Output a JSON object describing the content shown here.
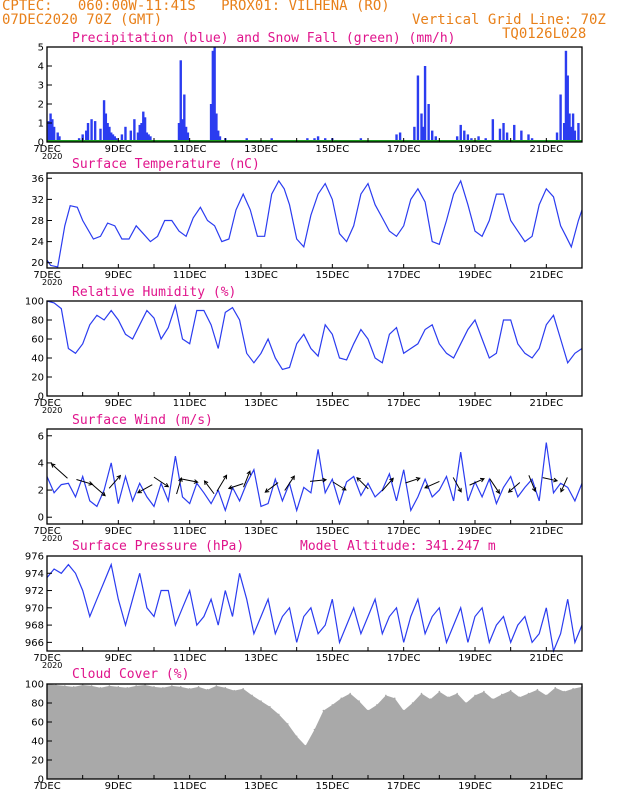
{
  "header": {
    "line1": "CPTEC:   060:00W-11:41S   PROX01: VILHENA (RO)",
    "line2_left": "07DEC2020 70Z (GMT)",
    "line2_right": "Vertical Grid Line: 70Z",
    "line3_right": "TQ0126L028"
  },
  "colors": {
    "header": "#e8801a",
    "panel_title": "#e0148c",
    "precip": "#2b3cf0",
    "snow": "#1e9c1e",
    "line": "#2b3cf0",
    "cloud": "#a9a9a9"
  },
  "x_axis": {
    "days": [
      "7DEC",
      "9DEC",
      "11DEC",
      "13DEC",
      "15DEC",
      "17DEC",
      "19DEC",
      "21DEC"
    ],
    "year_label": "2020"
  },
  "chart_data": [
    {
      "type": "bar",
      "name_key": "precip",
      "title": "Precipitation (blue) and Snow Fall (green) (mm/h)",
      "ylim": [
        0,
        5
      ],
      "yticks": [
        "0",
        "1",
        "2",
        "3",
        "4",
        "5"
      ],
      "x": [
        7.05,
        7.1,
        7.15,
        7.2,
        7.3,
        7.35,
        7.9,
        8.0,
        8.1,
        8.15,
        8.25,
        8.35,
        8.5,
        8.6,
        8.65,
        8.7,
        8.75,
        8.8,
        8.85,
        8.9,
        8.95,
        9.1,
        9.2,
        9.35,
        9.45,
        9.55,
        9.6,
        9.65,
        9.7,
        9.75,
        9.8,
        9.85,
        9.9,
        10.7,
        10.75,
        10.8,
        10.85,
        10.9,
        10.95,
        11.6,
        11.65,
        11.7,
        11.75,
        11.8,
        11.85,
        12.0,
        12.6,
        13.2,
        13.3,
        13.5,
        13.7,
        14.2,
        14.3,
        14.5,
        14.6,
        14.8,
        14.9,
        15.0,
        15.1,
        15.8,
        16.2,
        16.8,
        16.9,
        17.3,
        17.4,
        17.5,
        17.55,
        17.6,
        17.7,
        17.8,
        17.9,
        18.5,
        18.6,
        18.7,
        18.8,
        18.9,
        19.1,
        19.3,
        19.5,
        19.7,
        19.8,
        19.9,
        20.1,
        20.3,
        20.5,
        20.6,
        21.3,
        21.4,
        21.5,
        21.55,
        21.6,
        21.65,
        21.7,
        21.75,
        21.8,
        21.9
      ],
      "values": [
        1.1,
        1.5,
        1.2,
        0.8,
        0.5,
        0.3,
        0.2,
        0.4,
        0.6,
        1.0,
        1.2,
        1.1,
        0.7,
        2.2,
        1.5,
        1.0,
        0.8,
        0.5,
        0.4,
        0.3,
        0.2,
        0.4,
        0.8,
        0.6,
        1.2,
        0.5,
        0.9,
        1.0,
        1.6,
        1.3,
        0.5,
        0.4,
        0.3,
        1.0,
        4.3,
        1.2,
        2.5,
        0.8,
        0.5,
        2.0,
        4.8,
        5.0,
        1.5,
        0.6,
        0.3,
        0.2,
        0.2,
        0.1,
        0.2,
        0.1,
        0.1,
        0.1,
        0.2,
        0.2,
        0.3,
        0.2,
        0.1,
        0.2,
        0.1,
        0.2,
        0.1,
        0.4,
        0.5,
        0.8,
        3.5,
        1.5,
        0.8,
        4.0,
        2.0,
        0.6,
        0.3,
        0.3,
        0.9,
        0.6,
        0.4,
        0.2,
        0.3,
        0.2,
        1.2,
        0.7,
        1.0,
        0.5,
        0.9,
        0.6,
        0.4,
        0.2,
        0.5,
        2.5,
        1.0,
        4.8,
        3.5,
        1.5,
        0.8,
        1.5,
        0.6,
        1.0
      ],
      "snow": [
        0,
        0,
        0,
        0,
        0,
        0,
        0,
        0,
        0,
        0,
        0,
        0,
        0,
        0,
        0,
        0,
        0,
        0,
        0,
        0,
        0,
        0,
        0,
        0,
        0,
        0,
        0,
        0,
        0,
        0,
        0,
        0,
        0,
        0,
        0,
        0,
        0,
        0,
        0,
        0,
        0,
        0,
        0,
        0,
        0,
        0,
        0,
        0,
        0,
        0,
        0,
        0,
        0,
        0,
        0,
        0,
        0,
        0,
        0,
        0,
        0,
        0,
        0,
        0,
        0,
        0,
        0,
        0,
        0,
        0,
        0,
        0,
        0,
        0,
        0,
        0,
        0,
        0,
        0,
        0,
        0,
        0,
        0,
        0,
        0,
        0,
        0,
        0,
        0,
        0,
        0,
        0,
        0,
        0,
        0,
        0
      ]
    },
    {
      "type": "line",
      "name_key": "temp",
      "title": "Surface Temperature (nC)",
      "ylim": [
        19,
        37
      ],
      "yticks": [
        "20",
        "24",
        "28",
        "32",
        "36"
      ],
      "x": [
        7.0,
        7.1,
        7.3,
        7.5,
        7.65,
        7.85,
        8.0,
        8.3,
        8.5,
        8.7,
        8.9,
        9.1,
        9.3,
        9.5,
        9.7,
        9.9,
        10.1,
        10.3,
        10.5,
        10.7,
        10.9,
        11.1,
        11.3,
        11.5,
        11.7,
        11.9,
        12.1,
        12.3,
        12.5,
        12.7,
        12.9,
        13.1,
        13.3,
        13.5,
        13.65,
        13.8,
        14.0,
        14.2,
        14.4,
        14.6,
        14.8,
        15.0,
        15.2,
        15.4,
        15.6,
        15.8,
        16.0,
        16.2,
        16.4,
        16.6,
        16.8,
        17.0,
        17.2,
        17.4,
        17.6,
        17.8,
        18.0,
        18.2,
        18.4,
        18.6,
        18.8,
        19.0,
        19.2,
        19.4,
        19.6,
        19.8,
        20.0,
        20.2,
        20.4,
        20.6,
        20.8,
        21.0,
        21.2,
        21.4,
        21.55,
        21.7,
        21.9,
        22.0
      ],
      "values": [
        20.5,
        19.5,
        19.2,
        27,
        30.8,
        30.5,
        28,
        24.5,
        25,
        27.5,
        27,
        24.5,
        24.5,
        27,
        25.5,
        24,
        25,
        28,
        28,
        26,
        25,
        28.5,
        30.5,
        28,
        27,
        24,
        24.5,
        30,
        33,
        30,
        25,
        25,
        33,
        35.5,
        34,
        31,
        24.5,
        23,
        29,
        33,
        35,
        32,
        25.5,
        24,
        27,
        33,
        35,
        31,
        28.5,
        26,
        25,
        27,
        32,
        34,
        31.5,
        24,
        23.5,
        28,
        33,
        35.5,
        31,
        26,
        25,
        28,
        33,
        33,
        28,
        26,
        24,
        25,
        31,
        34,
        32.5,
        27,
        25,
        23,
        28,
        30
      ]
    },
    {
      "type": "line",
      "name_key": "rh",
      "title": "Relative Humidity (%)",
      "ylim": [
        0,
        100
      ],
      "yticks": [
        "0",
        "20",
        "40",
        "60",
        "80",
        "100"
      ],
      "x": [
        7.0,
        7.2,
        7.4,
        7.6,
        7.8,
        8.0,
        8.2,
        8.4,
        8.6,
        8.8,
        9.0,
        9.2,
        9.4,
        9.6,
        9.8,
        10.0,
        10.2,
        10.4,
        10.6,
        10.8,
        11.0,
        11.2,
        11.4,
        11.6,
        11.8,
        12.0,
        12.2,
        12.4,
        12.6,
        12.8,
        13.0,
        13.2,
        13.4,
        13.6,
        13.8,
        14.0,
        14.2,
        14.4,
        14.6,
        14.8,
        15.0,
        15.2,
        15.4,
        15.6,
        15.8,
        16.0,
        16.2,
        16.4,
        16.6,
        16.8,
        17.0,
        17.2,
        17.4,
        17.6,
        17.8,
        18.0,
        18.2,
        18.4,
        18.6,
        18.8,
        19.0,
        19.2,
        19.4,
        19.6,
        19.8,
        20.0,
        20.2,
        20.4,
        20.6,
        20.8,
        21.0,
        21.2,
        21.4,
        21.6,
        21.8,
        22.0
      ],
      "values": [
        100,
        98,
        92,
        50,
        45,
        55,
        75,
        85,
        80,
        90,
        80,
        65,
        60,
        75,
        90,
        82,
        60,
        72,
        95,
        60,
        55,
        90,
        90,
        75,
        50,
        88,
        93,
        80,
        45,
        35,
        45,
        60,
        40,
        28,
        30,
        55,
        65,
        50,
        42,
        75,
        65,
        40,
        38,
        55,
        70,
        60,
        40,
        35,
        65,
        72,
        45,
        50,
        55,
        70,
        75,
        55,
        45,
        40,
        55,
        70,
        80,
        60,
        40,
        45,
        80,
        80,
        55,
        45,
        40,
        50,
        75,
        85,
        60,
        35,
        45,
        50
      ]
    },
    {
      "type": "line",
      "name_key": "wind",
      "title": "Surface Wind (m/s)",
      "ylim": [
        -0.5,
        6.5
      ],
      "yticks": [
        "0",
        "2",
        "4",
        "6"
      ],
      "x": [
        7.0,
        7.2,
        7.4,
        7.6,
        7.8,
        8.0,
        8.2,
        8.4,
        8.6,
        8.8,
        9.0,
        9.2,
        9.4,
        9.6,
        9.8,
        10.0,
        10.2,
        10.4,
        10.6,
        10.8,
        11.0,
        11.2,
        11.4,
        11.6,
        11.8,
        12.0,
        12.2,
        12.4,
        12.6,
        12.8,
        13.0,
        13.2,
        13.4,
        13.6,
        13.8,
        14.0,
        14.2,
        14.4,
        14.6,
        14.8,
        15.0,
        15.2,
        15.4,
        15.6,
        15.8,
        16.0,
        16.2,
        16.4,
        16.6,
        16.8,
        17.0,
        17.2,
        17.4,
        17.6,
        17.8,
        18.0,
        18.2,
        18.4,
        18.6,
        18.8,
        19.0,
        19.2,
        19.4,
        19.6,
        19.8,
        20.0,
        20.2,
        20.4,
        20.6,
        20.8,
        21.0,
        21.2,
        21.4,
        21.6,
        21.8,
        22.0
      ],
      "values": [
        3.0,
        1.8,
        2.4,
        2.5,
        1.5,
        3.0,
        1.2,
        0.8,
        2.0,
        4.0,
        1.0,
        3.0,
        1.2,
        2.5,
        1.5,
        0.8,
        2.5,
        1.2,
        4.5,
        1.5,
        1.0,
        2.5,
        1.8,
        1.0,
        2.0,
        0.5,
        2.2,
        1.2,
        2.5,
        3.5,
        0.8,
        1.0,
        2.8,
        1.2,
        2.5,
        0.5,
        2.2,
        1.8,
        5.0,
        1.8,
        2.8,
        1.0,
        2.6,
        3.0,
        1.6,
        2.5,
        1.5,
        2.0,
        3.2,
        1.2,
        3.5,
        0.5,
        1.5,
        2.8,
        1.5,
        2.0,
        3.0,
        1.2,
        4.8,
        1.2,
        2.6,
        1.5,
        2.8,
        1.0,
        2.2,
        3.0,
        1.5,
        2.2,
        2.8,
        1.2,
        5.5,
        1.8,
        2.5,
        2.2,
        1.2,
        2.5
      ],
      "arrows": [
        {
          "x": 7.35,
          "y": 3.4,
          "u": -1,
          "v": 0.9
        },
        {
          "x": 8.05,
          "y": 2.6,
          "u": 1,
          "v": -0.3
        },
        {
          "x": 8.45,
          "y": 2.0,
          "u": 0.8,
          "v": -0.7
        },
        {
          "x": 8.9,
          "y": 2.6,
          "u": 0.7,
          "v": 0.8
        },
        {
          "x": 9.75,
          "y": 2.1,
          "u": -0.9,
          "v": -0.5
        },
        {
          "x": 10.2,
          "y": 2.6,
          "u": 0.9,
          "v": -0.6
        },
        {
          "x": 10.7,
          "y": 2.3,
          "u": 0.3,
          "v": 1.0
        },
        {
          "x": 11.0,
          "y": 2.7,
          "u": 1,
          "v": -0.2
        },
        {
          "x": 11.55,
          "y": 2.2,
          "u": -0.6,
          "v": 0.8
        },
        {
          "x": 11.9,
          "y": 2.5,
          "u": 0.6,
          "v": 1.0
        },
        {
          "x": 12.3,
          "y": 2.3,
          "u": -0.9,
          "v": -0.3
        },
        {
          "x": 12.6,
          "y": 2.8,
          "u": 0.4,
          "v": 1.0
        },
        {
          "x": 13.3,
          "y": 2.2,
          "u": -0.8,
          "v": -0.6
        },
        {
          "x": 13.8,
          "y": 2.5,
          "u": 0.6,
          "v": 0.9
        },
        {
          "x": 14.6,
          "y": 2.7,
          "u": 1,
          "v": 0.1
        },
        {
          "x": 15.2,
          "y": 2.3,
          "u": 0.8,
          "v": -0.5
        },
        {
          "x": 15.85,
          "y": 2.5,
          "u": -0.7,
          "v": 0.7
        },
        {
          "x": 16.55,
          "y": 2.4,
          "u": 0.7,
          "v": 0.8
        },
        {
          "x": 17.25,
          "y": 2.7,
          "u": 0.9,
          "v": 0.3
        },
        {
          "x": 17.8,
          "y": 2.4,
          "u": -0.9,
          "v": -0.4
        },
        {
          "x": 18.5,
          "y": 2.4,
          "u": 0.5,
          "v": -0.9
        },
        {
          "x": 19.05,
          "y": 2.6,
          "u": 0.9,
          "v": 0.4
        },
        {
          "x": 19.55,
          "y": 2.3,
          "u": 0.6,
          "v": -0.9
        },
        {
          "x": 20.1,
          "y": 2.2,
          "u": -0.7,
          "v": -0.6
        },
        {
          "x": 20.6,
          "y": 2.5,
          "u": 0.4,
          "v": -1.0
        },
        {
          "x": 21.1,
          "y": 2.8,
          "u": 0.9,
          "v": -0.2
        },
        {
          "x": 21.5,
          "y": 2.4,
          "u": -0.4,
          "v": -0.9
        }
      ]
    },
    {
      "type": "line",
      "name_key": "pres",
      "title": "Surface Pressure (hPa)",
      "subtitle": "Model Altitude: 341.247 m",
      "ylim": [
        965,
        976
      ],
      "yticks": [
        "966",
        "968",
        "970",
        "972",
        "974",
        "976"
      ],
      "x": [
        7.0,
        7.2,
        7.4,
        7.6,
        7.8,
        8.0,
        8.2,
        8.4,
        8.6,
        8.8,
        9.0,
        9.2,
        9.4,
        9.6,
        9.8,
        10.0,
        10.2,
        10.4,
        10.6,
        10.8,
        11.0,
        11.2,
        11.4,
        11.6,
        11.8,
        12.0,
        12.2,
        12.4,
        12.6,
        12.8,
        13.0,
        13.2,
        13.4,
        13.6,
        13.8,
        14.0,
        14.2,
        14.4,
        14.6,
        14.8,
        15.0,
        15.2,
        15.4,
        15.6,
        15.8,
        16.0,
        16.2,
        16.4,
        16.6,
        16.8,
        17.0,
        17.2,
        17.4,
        17.6,
        17.8,
        18.0,
        18.2,
        18.4,
        18.6,
        18.8,
        19.0,
        19.2,
        19.4,
        19.6,
        19.8,
        20.0,
        20.2,
        20.4,
        20.6,
        20.8,
        21.0,
        21.2,
        21.4,
        21.6,
        21.8,
        22.0
      ],
      "values": [
        973.5,
        974.5,
        974,
        975,
        974,
        972,
        969,
        971,
        973,
        975,
        971,
        968,
        971,
        974,
        970,
        969,
        972,
        972,
        968,
        970,
        972,
        968,
        969,
        971,
        968,
        972,
        969,
        974,
        971,
        967,
        969,
        971,
        967,
        969,
        970,
        966,
        969,
        970,
        967,
        968,
        971,
        966,
        968,
        970,
        967,
        969,
        971,
        967,
        969,
        970,
        966,
        969,
        971,
        967,
        969,
        970,
        966,
        968,
        970,
        966,
        969,
        970,
        966,
        968,
        969,
        966,
        968,
        969,
        966,
        967,
        970,
        965,
        967,
        971,
        966,
        968
      ]
    },
    {
      "type": "area",
      "name_key": "cloud",
      "title": "Cloud Cover (%)",
      "ylim": [
        0,
        100
      ],
      "yticks": [
        "0",
        "20",
        "40",
        "60",
        "80",
        "100"
      ],
      "x": [
        7.0,
        7.25,
        7.5,
        7.75,
        8.0,
        8.25,
        8.5,
        8.75,
        9.0,
        9.25,
        9.5,
        9.75,
        10.0,
        10.25,
        10.5,
        10.75,
        11.0,
        11.25,
        11.5,
        11.75,
        12.0,
        12.25,
        12.5,
        12.75,
        13.0,
        13.25,
        13.5,
        13.75,
        14.0,
        14.25,
        14.5,
        14.75,
        15.0,
        15.25,
        15.5,
        15.75,
        16.0,
        16.25,
        16.5,
        16.75,
        17.0,
        17.25,
        17.5,
        17.75,
        18.0,
        18.25,
        18.5,
        18.75,
        19.0,
        19.25,
        19.5,
        19.75,
        20.0,
        20.25,
        20.5,
        20.75,
        21.0,
        21.25,
        21.5,
        21.75,
        22.0
      ],
      "values": [
        100,
        99,
        98,
        97,
        99,
        98,
        96,
        98,
        97,
        96,
        98,
        99,
        97,
        96,
        98,
        97,
        95,
        97,
        94,
        98,
        96,
        93,
        95,
        88,
        82,
        76,
        68,
        58,
        45,
        35,
        52,
        72,
        78,
        85,
        90,
        82,
        72,
        78,
        88,
        85,
        72,
        80,
        90,
        84,
        92,
        86,
        90,
        80,
        88,
        92,
        84,
        89,
        93,
        86,
        90,
        94,
        88,
        96,
        92,
        95,
        97
      ]
    }
  ]
}
